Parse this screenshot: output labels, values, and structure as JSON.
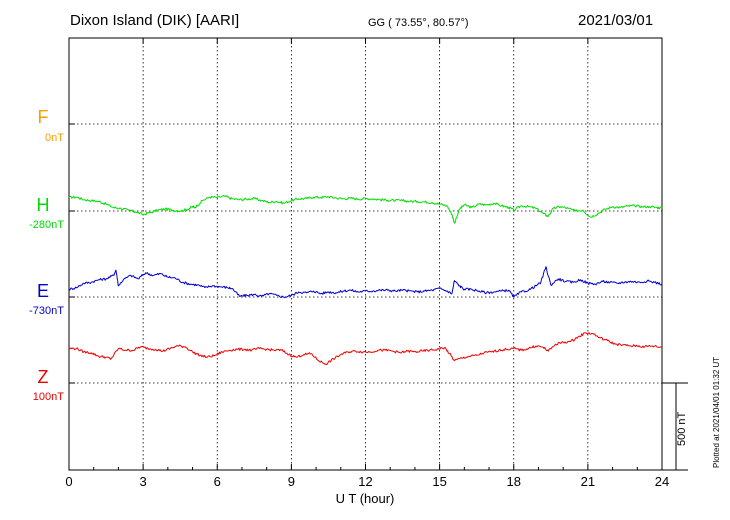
{
  "header": {
    "station": "Dixon Island (DIK)  [AARI]",
    "coords": "GG ( 73.55°,  80.57°)",
    "date": "2021/03/01"
  },
  "channels": [
    {
      "name": "F",
      "baseline": "0nT",
      "color": "#f5a000"
    },
    {
      "name": "H",
      "baseline": "-280nT",
      "color": "#00dd00"
    },
    {
      "name": "E",
      "baseline": "-730nT",
      "color": "#0000cc"
    },
    {
      "name": "Z",
      "baseline": "100nT",
      "color": "#ee0000"
    }
  ],
  "plotted_note": "Plotted at 2021/04/01 01:32 UT",
  "scale_bar_label": "500 nT",
  "chart_data": {
    "type": "line",
    "xlabel": "U T (hour)",
    "ylabel": "",
    "xlim": [
      0,
      24
    ],
    "xticks": [
      "0",
      "3",
      "6",
      "9",
      "12",
      "15",
      "18",
      "21",
      "24"
    ],
    "grid": true,
    "series": [
      {
        "name": "H",
        "color": "#00dd00",
        "offset_nT": 0,
        "x": [
          0,
          0.3,
          0.6,
          0.9,
          1.2,
          1.5,
          1.8,
          2.1,
          2.4,
          2.7,
          3.0,
          3.3,
          3.6,
          3.9,
          4.2,
          4.5,
          4.8,
          5.0,
          5.1,
          5.4,
          5.7,
          6.0,
          6.3,
          6.6,
          6.9,
          7.2,
          7.5,
          7.8,
          8.1,
          8.4,
          8.7,
          9.0,
          9.3,
          9.6,
          9.9,
          10.2,
          10.5,
          10.8,
          11.1,
          11.4,
          11.7,
          12.0,
          12.3,
          12.6,
          12.9,
          13.2,
          13.5,
          13.8,
          14.1,
          14.4,
          14.7,
          15.0,
          15.3,
          15.5,
          15.6,
          15.8,
          16.0,
          16.3,
          16.6,
          16.9,
          17.2,
          17.5,
          17.8,
          18.0,
          18.3,
          18.6,
          18.9,
          19.2,
          19.4,
          19.6,
          19.9,
          20.2,
          20.5,
          20.8,
          21.1,
          21.4,
          21.7,
          22.0,
          22.3,
          22.6,
          22.9,
          23.2,
          23.5,
          23.8,
          24.0
        ],
        "y": [
          78,
          80,
          65,
          60,
          55,
          40,
          20,
          15,
          5,
          -5,
          -20,
          -8,
          5,
          12,
          5,
          0,
          10,
          25,
          20,
          60,
          80,
          78,
          85,
          70,
          65,
          68,
          72,
          60,
          50,
          55,
          45,
          60,
          70,
          72,
          80,
          78,
          82,
          75,
          70,
          74,
          68,
          72,
          70,
          65,
          62,
          60,
          60,
          55,
          55,
          52,
          48,
          40,
          30,
          -20,
          -70,
          10,
          35,
          20,
          40,
          35,
          45,
          30,
          20,
          5,
          30,
          25,
          15,
          -15,
          -30,
          15,
          25,
          15,
          0,
          5,
          -35,
          -15,
          10,
          25,
          20,
          28,
          30,
          25,
          25,
          20,
          18
        ]
      },
      {
        "name": "E",
        "color": "#0000cc",
        "offset_nT": -450,
        "x": [
          0,
          0.3,
          0.6,
          0.9,
          1.2,
          1.5,
          1.8,
          1.9,
          2.0,
          2.2,
          2.5,
          2.8,
          3.1,
          3.4,
          3.7,
          4.0,
          4.3,
          4.6,
          4.9,
          5.2,
          5.5,
          5.8,
          6.1,
          6.4,
          6.6,
          6.9,
          7.2,
          7.5,
          7.8,
          8.1,
          8.4,
          8.7,
          9.0,
          9.3,
          9.6,
          9.9,
          10.2,
          10.5,
          10.8,
          11.1,
          11.4,
          11.7,
          12.0,
          12.3,
          12.6,
          12.9,
          13.2,
          13.5,
          13.8,
          14.1,
          14.4,
          14.7,
          15.0,
          15.3,
          15.5,
          15.6,
          15.8,
          16.0,
          16.3,
          16.6,
          16.9,
          17.2,
          17.5,
          17.8,
          18.0,
          18.3,
          18.6,
          18.9,
          19.1,
          19.3,
          19.5,
          19.8,
          20.1,
          20.4,
          20.7,
          21.0,
          21.3,
          21.6,
          21.9,
          22.2,
          22.5,
          22.8,
          23.1,
          23.4,
          23.7,
          24.0
        ],
        "y": [
          0,
          10,
          35,
          40,
          55,
          60,
          80,
          110,
          20,
          55,
          80,
          60,
          95,
          80,
          90,
          70,
          65,
          40,
          30,
          25,
          10,
          20,
          15,
          10,
          5,
          -40,
          -35,
          -30,
          -40,
          -25,
          -35,
          -45,
          -35,
          -15,
          -20,
          -10,
          -25,
          -15,
          -20,
          -10,
          -5,
          -15,
          -10,
          -10,
          -5,
          -5,
          -10,
          -5,
          -10,
          -15,
          -10,
          -5,
          5,
          -10,
          -25,
          50,
          20,
          0,
          0,
          -10,
          -20,
          -15,
          -10,
          -5,
          -45,
          -15,
          -5,
          20,
          40,
          130,
          25,
          60,
          45,
          40,
          55,
          35,
          30,
          45,
          40,
          35,
          42,
          45,
          40,
          48,
          40,
          30
        ]
      },
      {
        "name": "Z",
        "color": "#ee0000",
        "offset_nT": -800,
        "x": [
          0,
          0.3,
          0.6,
          0.9,
          1.2,
          1.5,
          1.7,
          2.0,
          2.3,
          2.6,
          2.9,
          3.2,
          3.5,
          3.8,
          4.1,
          4.4,
          4.7,
          5.0,
          5.3,
          5.6,
          5.9,
          6.2,
          6.5,
          6.8,
          7.1,
          7.4,
          7.7,
          8.0,
          8.3,
          8.6,
          8.9,
          9.2,
          9.5,
          9.8,
          10.1,
          10.4,
          10.7,
          11.0,
          11.3,
          11.6,
          11.9,
          12.2,
          12.5,
          12.8,
          13.1,
          13.4,
          13.7,
          14.0,
          14.3,
          14.6,
          14.9,
          15.2,
          15.4,
          15.6,
          15.9,
          16.2,
          16.5,
          16.8,
          17.1,
          17.4,
          17.7,
          18.0,
          18.3,
          18.6,
          18.9,
          19.2,
          19.4,
          19.7,
          20.0,
          20.3,
          20.6,
          20.9,
          21.2,
          21.5,
          21.8,
          22.1,
          22.4,
          22.7,
          23.0,
          23.3,
          23.6,
          24.0
        ],
        "y": [
          10,
          10,
          -10,
          -15,
          -35,
          -40,
          -50,
          10,
          0,
          0,
          20,
          10,
          5,
          -5,
          10,
          25,
          20,
          -10,
          -30,
          -40,
          -30,
          -10,
          0,
          5,
          5,
          0,
          10,
          5,
          0,
          0,
          -25,
          -40,
          -25,
          -20,
          -60,
          -80,
          -50,
          -25,
          -10,
          -5,
          -10,
          -10,
          0,
          0,
          -5,
          -15,
          -5,
          -10,
          -5,
          0,
          5,
          15,
          -20,
          -60,
          -45,
          -35,
          -30,
          -15,
          -10,
          0,
          5,
          10,
          0,
          10,
          25,
          15,
          -5,
          35,
          45,
          50,
          75,
          100,
          95,
          70,
          55,
          35,
          30,
          25,
          25,
          20,
          25,
          15
        ]
      }
    ]
  }
}
